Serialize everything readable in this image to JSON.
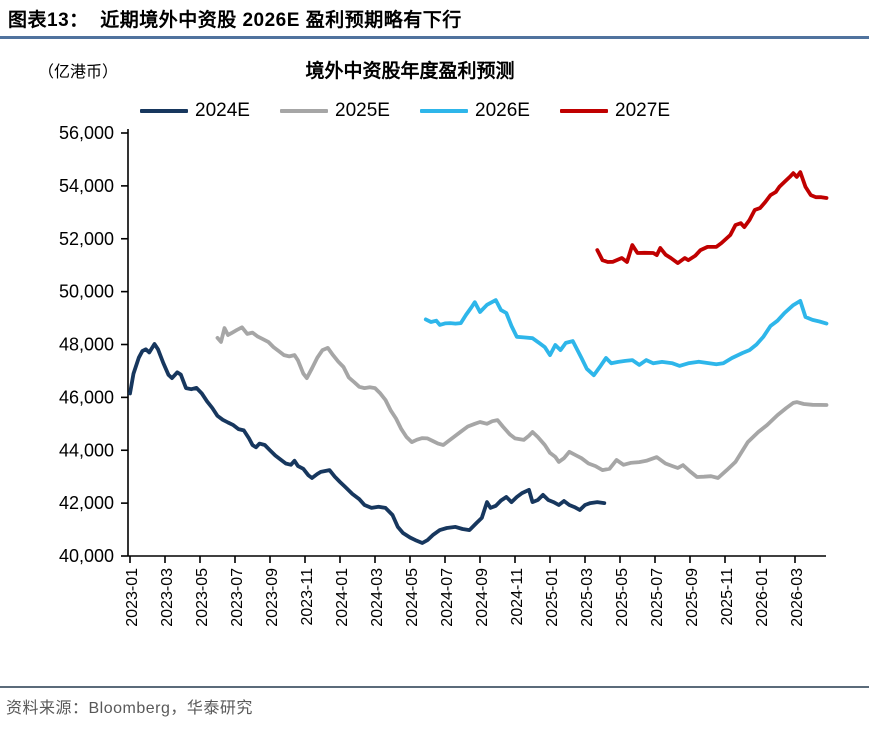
{
  "header": {
    "title": "图表13：  近期境外中资股 2026E 盈利预期略有下行"
  },
  "footer": {
    "source": "资料来源：Bloomberg，华泰研究"
  },
  "chart_data": {
    "type": "line",
    "title": "境外中资股年度盈利预测",
    "unit_label": "（亿港币）",
    "ylabel": "",
    "xlabel": "",
    "ylim": [
      40000,
      56000
    ],
    "y_step": 2000,
    "grid": false,
    "legend_position": "top",
    "x_tick_labels": [
      "2023-01",
      "2023-03",
      "2023-05",
      "2023-07",
      "2023-09",
      "2023-11",
      "2024-01",
      "2024-03",
      "2024-05",
      "2024-07",
      "2024-09",
      "2024-11",
      "2025-01",
      "2025-03",
      "2025-05",
      "2025-07",
      "2025-09",
      "2025-11",
      "2026-01",
      "2026-03"
    ],
    "x_unit_note": "points use months since 2023-01 as x",
    "series": [
      {
        "name": "2024E",
        "color": "#17375E",
        "points": [
          [
            0,
            46150
          ],
          [
            0.2,
            46900
          ],
          [
            0.5,
            47500
          ],
          [
            0.7,
            47750
          ],
          [
            0.9,
            47820
          ],
          [
            1.1,
            47700
          ],
          [
            1.4,
            48020
          ],
          [
            1.6,
            47820
          ],
          [
            1.9,
            47300
          ],
          [
            2.2,
            46850
          ],
          [
            2.4,
            46730
          ],
          [
            2.7,
            46950
          ],
          [
            2.9,
            46860
          ],
          [
            3.2,
            46350
          ],
          [
            3.5,
            46310
          ],
          [
            3.8,
            46360
          ],
          [
            4.1,
            46150
          ],
          [
            4.4,
            45850
          ],
          [
            4.7,
            45600
          ],
          [
            5,
            45300
          ],
          [
            5.3,
            45150
          ],
          [
            5.6,
            45050
          ],
          [
            5.9,
            44950
          ],
          [
            6.2,
            44800
          ],
          [
            6.5,
            44750
          ],
          [
            6.8,
            44450
          ],
          [
            7,
            44200
          ],
          [
            7.2,
            44110
          ],
          [
            7.4,
            44250
          ],
          [
            7.7,
            44200
          ],
          [
            8,
            44000
          ],
          [
            8.3,
            43800
          ],
          [
            8.6,
            43650
          ],
          [
            8.9,
            43500
          ],
          [
            9.2,
            43450
          ],
          [
            9.4,
            43600
          ],
          [
            9.6,
            43400
          ],
          [
            9.9,
            43300
          ],
          [
            10.2,
            43050
          ],
          [
            10.4,
            42950
          ],
          [
            10.7,
            43100
          ],
          [
            10.9,
            43180
          ],
          [
            11.4,
            43250
          ],
          [
            11.7,
            43000
          ],
          [
            12,
            42800
          ],
          [
            12.3,
            42610
          ],
          [
            12.7,
            42350
          ],
          [
            13.1,
            42150
          ],
          [
            13.4,
            41930
          ],
          [
            13.8,
            41820
          ],
          [
            14.2,
            41860
          ],
          [
            14.6,
            41820
          ],
          [
            15,
            41550
          ],
          [
            15.3,
            41100
          ],
          [
            15.6,
            40870
          ],
          [
            16,
            40700
          ],
          [
            16.3,
            40600
          ],
          [
            16.7,
            40490
          ],
          [
            17,
            40600
          ],
          [
            17.3,
            40790
          ],
          [
            17.7,
            40980
          ],
          [
            18.1,
            41060
          ],
          [
            18.6,
            41100
          ],
          [
            19,
            41020
          ],
          [
            19.4,
            40980
          ],
          [
            19.8,
            41250
          ],
          [
            20.1,
            41440
          ],
          [
            20.4,
            42040
          ],
          [
            20.6,
            41820
          ],
          [
            20.9,
            41900
          ],
          [
            21.2,
            42100
          ],
          [
            21.5,
            42230
          ],
          [
            21.8,
            42040
          ],
          [
            22.1,
            42230
          ],
          [
            22.4,
            42380
          ],
          [
            22.8,
            42500
          ],
          [
            23,
            42040
          ],
          [
            23.3,
            42120
          ],
          [
            23.6,
            42310
          ],
          [
            23.9,
            42120
          ],
          [
            24.2,
            42040
          ],
          [
            24.5,
            41930
          ],
          [
            24.8,
            42080
          ],
          [
            25.1,
            41930
          ],
          [
            25.4,
            41850
          ],
          [
            25.7,
            41740
          ],
          [
            26,
            41930
          ],
          [
            26.3,
            42000
          ],
          [
            26.7,
            42040
          ],
          [
            27.1,
            42000
          ]
        ]
      },
      {
        "name": "2025E",
        "color": "#A6A6A6",
        "points": [
          [
            5,
            48250
          ],
          [
            5.2,
            48100
          ],
          [
            5.4,
            48620
          ],
          [
            5.6,
            48360
          ],
          [
            5.8,
            48430
          ],
          [
            6.1,
            48550
          ],
          [
            6.4,
            48650
          ],
          [
            6.7,
            48400
          ],
          [
            7,
            48450
          ],
          [
            7.3,
            48300
          ],
          [
            7.6,
            48200
          ],
          [
            7.9,
            48100
          ],
          [
            8.2,
            47900
          ],
          [
            8.5,
            47750
          ],
          [
            8.8,
            47600
          ],
          [
            9.1,
            47550
          ],
          [
            9.4,
            47600
          ],
          [
            9.6,
            47400
          ],
          [
            9.9,
            46900
          ],
          [
            10.1,
            46730
          ],
          [
            10.4,
            47100
          ],
          [
            10.7,
            47500
          ],
          [
            11,
            47790
          ],
          [
            11.3,
            47870
          ],
          [
            11.6,
            47600
          ],
          [
            11.9,
            47350
          ],
          [
            12.2,
            47150
          ],
          [
            12.5,
            46750
          ],
          [
            12.8,
            46580
          ],
          [
            13.1,
            46400
          ],
          [
            13.4,
            46350
          ],
          [
            13.7,
            46380
          ],
          [
            14,
            46350
          ],
          [
            14.3,
            46150
          ],
          [
            14.6,
            45900
          ],
          [
            14.9,
            45500
          ],
          [
            15.2,
            45200
          ],
          [
            15.5,
            44800
          ],
          [
            15.8,
            44500
          ],
          [
            16.1,
            44310
          ],
          [
            16.4,
            44400
          ],
          [
            16.7,
            44460
          ],
          [
            17,
            44450
          ],
          [
            17.3,
            44350
          ],
          [
            17.6,
            44250
          ],
          [
            17.9,
            44200
          ],
          [
            18.2,
            44350
          ],
          [
            18.5,
            44500
          ],
          [
            18.9,
            44700
          ],
          [
            19.3,
            44900
          ],
          [
            19.7,
            45000
          ],
          [
            20,
            45070
          ],
          [
            20.4,
            45000
          ],
          [
            20.7,
            45100
          ],
          [
            21,
            45140
          ],
          [
            21.3,
            44900
          ],
          [
            21.7,
            44600
          ],
          [
            22,
            44450
          ],
          [
            22.5,
            44390
          ],
          [
            22.8,
            44550
          ],
          [
            23,
            44690
          ],
          [
            23.3,
            44500
          ],
          [
            23.7,
            44200
          ],
          [
            24,
            43900
          ],
          [
            24.3,
            43750
          ],
          [
            24.5,
            43560
          ],
          [
            24.8,
            43700
          ],
          [
            25.1,
            43940
          ],
          [
            25.5,
            43800
          ],
          [
            25.8,
            43700
          ],
          [
            26.2,
            43500
          ],
          [
            26.6,
            43400
          ],
          [
            27,
            43250
          ],
          [
            27.4,
            43300
          ],
          [
            27.8,
            43630
          ],
          [
            28.2,
            43450
          ],
          [
            28.6,
            43520
          ],
          [
            29.1,
            43550
          ],
          [
            29.5,
            43600
          ],
          [
            30.1,
            43740
          ],
          [
            30.6,
            43500
          ],
          [
            31,
            43400
          ],
          [
            31.3,
            43330
          ],
          [
            31.6,
            43440
          ],
          [
            32,
            43200
          ],
          [
            32.4,
            42990
          ],
          [
            32.8,
            43000
          ],
          [
            33.2,
            43020
          ],
          [
            33.6,
            42950
          ],
          [
            34.1,
            43250
          ],
          [
            34.6,
            43560
          ],
          [
            35.3,
            44310
          ],
          [
            35.9,
            44690
          ],
          [
            36.4,
            44950
          ],
          [
            37,
            45330
          ],
          [
            37.5,
            45600
          ],
          [
            37.9,
            45790
          ],
          [
            38.1,
            45820
          ],
          [
            38.5,
            45750
          ],
          [
            39,
            45720
          ],
          [
            39.8,
            45710
          ]
        ]
      },
      {
        "name": "2026E",
        "color": "#2EB6EA",
        "points": [
          [
            16.9,
            48950
          ],
          [
            17.2,
            48850
          ],
          [
            17.5,
            48900
          ],
          [
            17.7,
            48740
          ],
          [
            18,
            48800
          ],
          [
            18.3,
            48810
          ],
          [
            18.6,
            48790
          ],
          [
            18.9,
            48810
          ],
          [
            19.2,
            49120
          ],
          [
            19.5,
            49400
          ],
          [
            19.7,
            49600
          ],
          [
            20,
            49230
          ],
          [
            20.4,
            49500
          ],
          [
            20.9,
            49680
          ],
          [
            21.2,
            49300
          ],
          [
            21.5,
            49190
          ],
          [
            21.8,
            48700
          ],
          [
            22.1,
            48290
          ],
          [
            22.5,
            48270
          ],
          [
            23,
            48240
          ],
          [
            23.4,
            48050
          ],
          [
            23.7,
            47900
          ],
          [
            24,
            47600
          ],
          [
            24.3,
            47980
          ],
          [
            24.6,
            47790
          ],
          [
            24.9,
            48060
          ],
          [
            25.3,
            48130
          ],
          [
            25.8,
            47490
          ],
          [
            26.1,
            47080
          ],
          [
            26.5,
            46840
          ],
          [
            26.9,
            47200
          ],
          [
            27.2,
            47490
          ],
          [
            27.5,
            47290
          ],
          [
            27.9,
            47340
          ],
          [
            28.3,
            47380
          ],
          [
            28.7,
            47410
          ],
          [
            29.1,
            47230
          ],
          [
            29.5,
            47410
          ],
          [
            29.9,
            47290
          ],
          [
            30.4,
            47340
          ],
          [
            31,
            47290
          ],
          [
            31.4,
            47190
          ],
          [
            31.9,
            47290
          ],
          [
            32.5,
            47350
          ],
          [
            33,
            47300
          ],
          [
            33.5,
            47250
          ],
          [
            33.9,
            47290
          ],
          [
            34.4,
            47490
          ],
          [
            35,
            47680
          ],
          [
            35.4,
            47790
          ],
          [
            35.8,
            48000
          ],
          [
            36.2,
            48300
          ],
          [
            36.6,
            48700
          ],
          [
            37,
            48900
          ],
          [
            37.4,
            49190
          ],
          [
            37.9,
            49490
          ],
          [
            38.3,
            49650
          ],
          [
            38.6,
            49040
          ],
          [
            39,
            48930
          ],
          [
            39.4,
            48870
          ],
          [
            39.8,
            48790
          ]
        ]
      },
      {
        "name": "2027E",
        "color": "#C00000",
        "points": [
          [
            26.7,
            51570
          ],
          [
            27,
            51190
          ],
          [
            27.3,
            51120
          ],
          [
            27.6,
            51130
          ],
          [
            28.1,
            51270
          ],
          [
            28.4,
            51120
          ],
          [
            28.7,
            51760
          ],
          [
            29,
            51460
          ],
          [
            29.4,
            51470
          ],
          [
            29.9,
            51460
          ],
          [
            30.1,
            51380
          ],
          [
            30.3,
            51650
          ],
          [
            30.6,
            51400
          ],
          [
            30.9,
            51270
          ],
          [
            31.3,
            51080
          ],
          [
            31.7,
            51270
          ],
          [
            31.9,
            51190
          ],
          [
            32.3,
            51360
          ],
          [
            32.6,
            51570
          ],
          [
            33,
            51690
          ],
          [
            33.5,
            51690
          ],
          [
            33.8,
            51840
          ],
          [
            34.3,
            52140
          ],
          [
            34.6,
            52520
          ],
          [
            34.9,
            52590
          ],
          [
            35.1,
            52440
          ],
          [
            35.4,
            52710
          ],
          [
            35.7,
            53090
          ],
          [
            36,
            53160
          ],
          [
            36.3,
            53390
          ],
          [
            36.6,
            53650
          ],
          [
            36.9,
            53770
          ],
          [
            37.1,
            53960
          ],
          [
            37.4,
            54150
          ],
          [
            37.7,
            54340
          ],
          [
            37.9,
            54480
          ],
          [
            38.1,
            54340
          ],
          [
            38.3,
            54520
          ],
          [
            38.6,
            53960
          ],
          [
            38.9,
            53650
          ],
          [
            39.2,
            53570
          ],
          [
            39.5,
            53570
          ],
          [
            39.8,
            53540
          ]
        ]
      }
    ]
  }
}
